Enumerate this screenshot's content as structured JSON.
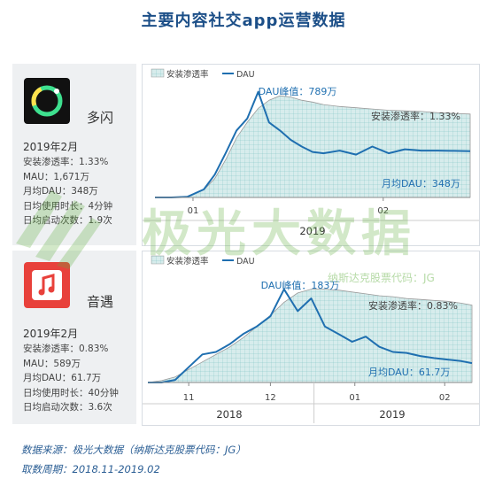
{
  "page": {
    "title": "主要内容社交app运营数据",
    "footer_source": "数据来源：极光大数据（纳斯达克股票代码：JG）",
    "footer_period": "取数周期：2018.11-2019.02",
    "watermark_main": "极光大数据",
    "watermark_sub": "纳斯达克股票代码：JG"
  },
  "apps": [
    {
      "name": "多闪",
      "icon": "duoshan-logo-icon",
      "month": "2019年2月",
      "stats": [
        "安装渗透率：1.33%",
        "MAU：1,671万",
        "月均DAU：348万",
        "日均使用时长：4分钟",
        "日均启动次数：1.9次"
      ]
    },
    {
      "name": "音遇",
      "icon": "yinyu-logo-icon",
      "month": "2019年2月",
      "stats": [
        "安装渗透率：0.83%",
        "MAU：589万",
        "月均DAU：61.7万",
        "日均使用时长：40分钟",
        "日均启动次数：3.6次"
      ]
    }
  ],
  "colors": {
    "dau_line": "#1f6fb0",
    "penetration_fill": "#d7ecec",
    "penetration_grid": "#7fc4c2",
    "title": "#1c4f88",
    "watermark": "#5fae3d"
  },
  "chart_data": [
    {
      "type": "area",
      "legend": [
        "安装渗透率",
        "DAU"
      ],
      "legend_position": "top-left",
      "x_ticks": [
        "01",
        "02"
      ],
      "year_labels": [
        "2019"
      ],
      "x": [
        "2019-01-01",
        "2019-01-04",
        "2019-01-07",
        "2019-01-10",
        "2019-01-12",
        "2019-01-14",
        "2019-01-16",
        "2019-01-18",
        "2019-01-20",
        "2019-01-22",
        "2019-01-24",
        "2019-01-26",
        "2019-01-28",
        "2019-01-30",
        "2019-02-01",
        "2019-02-04",
        "2019-02-07",
        "2019-02-10",
        "2019-02-13",
        "2019-02-16",
        "2019-02-19",
        "2019-02-22",
        "2019-02-25",
        "2019-02-28"
      ],
      "series": [
        {
          "name": "安装渗透率",
          "values": [
            0.0,
            0.0,
            0.02,
            0.12,
            0.3,
            0.6,
            0.95,
            1.2,
            1.42,
            1.55,
            1.62,
            1.6,
            1.55,
            1.52,
            1.48,
            1.45,
            1.43,
            1.41,
            1.39,
            1.38,
            1.37,
            1.35,
            1.34,
            1.33
          ]
        },
        {
          "name": "DAU",
          "values": [
            0,
            0,
            5,
            60,
            170,
            330,
            500,
            590,
            789,
            560,
            500,
            430,
            380,
            340,
            330,
            350,
            320,
            380,
            330,
            360,
            350,
            350,
            348,
            345
          ]
        }
      ],
      "annotations": [
        "DAU峰值：789万",
        "安装渗透率：1.33%",
        "月均DAU：348万"
      ]
    },
    {
      "type": "area",
      "legend": [
        "安装渗透率",
        "DAU"
      ],
      "legend_position": "top-left",
      "x_ticks": [
        "11",
        "12",
        "01",
        "02"
      ],
      "year_labels": [
        "2018",
        "2019"
      ],
      "x": [
        "2018-11-01",
        "2018-11-06",
        "2018-11-11",
        "2018-11-16",
        "2018-11-21",
        "2018-11-26",
        "2018-12-01",
        "2018-12-06",
        "2018-12-11",
        "2018-12-16",
        "2018-12-21",
        "2018-12-26",
        "2018-12-31",
        "2019-01-05",
        "2019-01-10",
        "2019-01-15",
        "2019-01-20",
        "2019-01-25",
        "2019-01-30",
        "2019-02-04",
        "2019-02-09",
        "2019-02-14",
        "2019-02-19",
        "2019-02-24",
        "2019-02-28"
      ],
      "series": [
        {
          "name": "安装渗透率",
          "values": [
            0.0,
            0.02,
            0.06,
            0.14,
            0.22,
            0.3,
            0.38,
            0.48,
            0.6,
            0.72,
            0.86,
            0.96,
            1.0,
            1.0,
            0.99,
            0.97,
            0.95,
            0.93,
            0.92,
            0.9,
            0.89,
            0.88,
            0.87,
            0.85,
            0.83
          ]
        },
        {
          "name": "DAU",
          "values": [
            0,
            0,
            5,
            30,
            55,
            60,
            75,
            95,
            110,
            130,
            183,
            140,
            165,
            110,
            95,
            80,
            90,
            70,
            60,
            58,
            52,
            48,
            45,
            42,
            38
          ]
        }
      ],
      "annotations": [
        "DAU峰值：183万",
        "安装渗透率：0.83%",
        "月均DAU：61.7万"
      ]
    }
  ]
}
